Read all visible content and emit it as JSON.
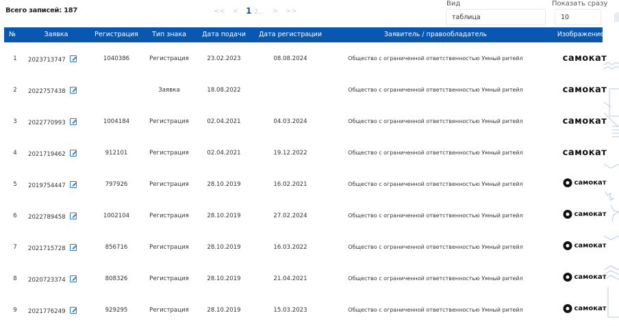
{
  "total_label": "Всего записей: 187",
  "pagination": {
    "first": "<<",
    "prev": "<",
    "current": "1",
    "next_pages": "2...",
    "next": ">",
    "last": ">>"
  },
  "view": {
    "label": "Вид",
    "value": "таблица"
  },
  "show": {
    "label": "Показать сразу",
    "value": "10"
  },
  "columns": [
    "№",
    "Заявка",
    "Регистрация",
    "Тип знака",
    "Дата подачи",
    "Дата регистрации",
    "Заявитель / правообладатель",
    "Изображение"
  ],
  "accent_color": "#0758b3",
  "rows": [
    {
      "n": "1",
      "app": "2023713747",
      "reg": "1040386",
      "type": "Регистрация",
      "filed": "23.02.2023",
      "registered": "08.08.2024",
      "owner": "Общество с ограниченной ответственностью Умный ритейл",
      "logo": "самокат",
      "logo_variant": "text"
    },
    {
      "n": "2",
      "app": "2022757438",
      "reg": "",
      "type": "Заявка",
      "filed": "18.08.2022",
      "registered": "",
      "owner": "Общество с ограниченной ответственностью Умный ритейл",
      "logo": "самокат",
      "logo_variant": "text"
    },
    {
      "n": "3",
      "app": "2022770993",
      "reg": "1004184",
      "type": "Регистрация",
      "filed": "02.04.2021",
      "registered": "04.03.2024",
      "owner": "Общество с ограниченной ответственностью Умный ритейл",
      "logo": "самокат",
      "logo_variant": "text"
    },
    {
      "n": "4",
      "app": "2021719462",
      "reg": "912101",
      "type": "Регистрация",
      "filed": "02.04.2021",
      "registered": "19.12.2022",
      "owner": "Общество с ограниченной ответственностью Умный ритейл",
      "logo": "самокат",
      "logo_variant": "text"
    },
    {
      "n": "5",
      "app": "2019754447",
      "reg": "797926",
      "type": "Регистрация",
      "filed": "28.10.2019",
      "registered": "16.02.2021",
      "owner": "Общество с ограниченной ответственностью Умный ритейл",
      "logo": "самокат",
      "logo_variant": "circle"
    },
    {
      "n": "6",
      "app": "2022789458",
      "reg": "1002104",
      "type": "Регистрация",
      "filed": "28.10.2019",
      "registered": "27.02.2024",
      "owner": "Общество с ограниченной ответственностью Умный ритейл",
      "logo": "самокат",
      "logo_variant": "circle"
    },
    {
      "n": "7",
      "app": "2021715728",
      "reg": "856716",
      "type": "Регистрация",
      "filed": "28.10.2019",
      "registered": "16.03.2022",
      "owner": "Общество с ограниченной ответственностью Умный ритейл",
      "logo": "самокат",
      "logo_variant": "circle"
    },
    {
      "n": "8",
      "app": "2020723374",
      "reg": "808326",
      "type": "Регистрация",
      "filed": "28.10.2019",
      "registered": "21.04.2021",
      "owner": "Общество с ограниченной ответственностью Умный ритейл",
      "logo": "самокат",
      "logo_variant": "circle"
    },
    {
      "n": "9",
      "app": "2021776249",
      "reg": "929295",
      "type": "Регистрация",
      "filed": "28.10.2019",
      "registered": "15.03.2023",
      "owner": "Общество с ограниченной ответственностью Умный ритейл",
      "logo": "самокат",
      "logo_variant": "circle"
    }
  ]
}
